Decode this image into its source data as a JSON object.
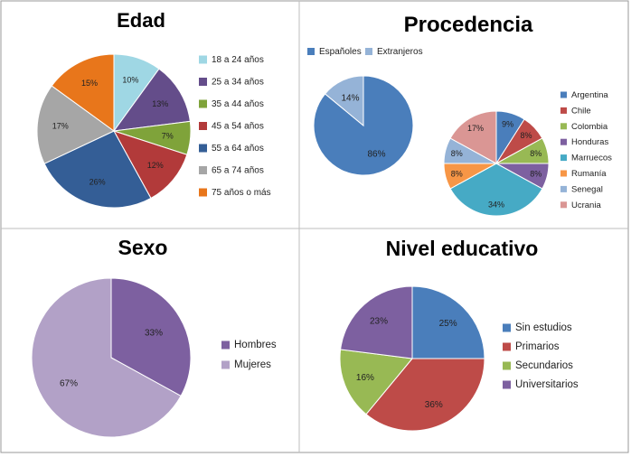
{
  "chart_data": [
    {
      "type": "pie",
      "title": "Edad",
      "categories": [
        "18 a 24 años",
        "25 a 34 años",
        "35 a 44 años",
        "45 a 54 años",
        "55 a 64 años",
        "65 a 74 años",
        "75 años o más"
      ],
      "values": [
        10,
        13,
        7,
        12,
        26,
        17,
        15
      ],
      "labels": [
        "10%",
        "13%",
        "7%",
        "12%",
        "26%",
        "17%",
        "15%"
      ],
      "colors": [
        "#9FD7E4",
        "#644D8A",
        "#7FA33A",
        "#B23A3A",
        "#345E96",
        "#A6A6A6",
        "#E8761B"
      ],
      "legend_position": "right"
    },
    {
      "type": "pie",
      "title": "Procedencia",
      "categories": [
        "Españoles",
        "Extranjeros"
      ],
      "values": [
        86,
        14
      ],
      "labels": [
        "86%",
        "14%"
      ],
      "colors": [
        "#4A7EBB",
        "#95B3D7"
      ],
      "legend_position": "top"
    },
    {
      "type": "pie",
      "title": "",
      "categories": [
        "Argentina",
        "Chile",
        "Colombia",
        "Honduras",
        "Marruecos",
        "Rumanía",
        "Senegal",
        "Ucrania"
      ],
      "values": [
        9,
        8,
        8,
        8,
        34,
        8,
        8,
        17
      ],
      "labels": [
        "9%",
        "8%",
        "8%",
        "8%",
        "34%",
        "8%",
        "8%",
        "17%"
      ],
      "colors": [
        "#4A7EBB",
        "#BE4B48",
        "#98B954",
        "#7D60A0",
        "#46AAC5",
        "#F79646",
        "#95B3D7",
        "#DA9694"
      ],
      "legend_position": "right"
    },
    {
      "type": "pie",
      "title": "Sexo",
      "categories": [
        "Hombres",
        "Mujeres"
      ],
      "values": [
        33,
        67
      ],
      "labels": [
        "33%",
        "67%"
      ],
      "colors": [
        "#7D60A0",
        "#B2A1C7"
      ],
      "legend_position": "right"
    },
    {
      "type": "pie",
      "title": "Nivel educativo",
      "categories": [
        "Sin estudios",
        "Primarios",
        "Secundarios",
        "Universitarios"
      ],
      "values": [
        25,
        36,
        16,
        23
      ],
      "labels": [
        "25%",
        "36%",
        "16%",
        "23%"
      ],
      "colors": [
        "#4A7EBB",
        "#BE4B48",
        "#98B954",
        "#7D60A0"
      ],
      "legend_position": "right"
    }
  ]
}
